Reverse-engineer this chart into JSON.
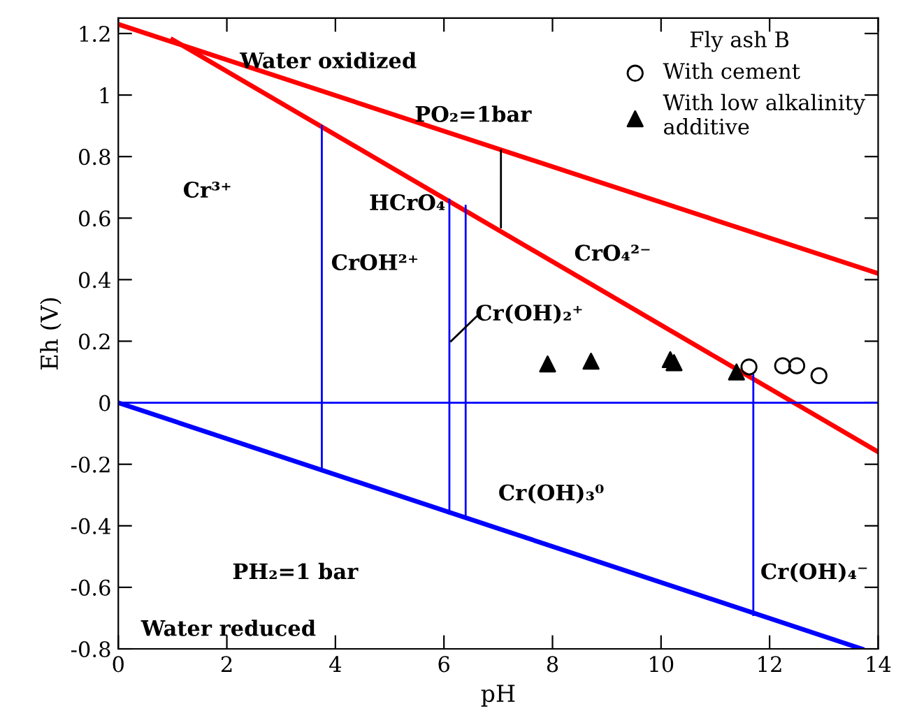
{
  "chart_data": {
    "type": "line",
    "xlabel": "pH",
    "ylabel": "Eh (V)",
    "legend_title": "Fly ash B",
    "legend": "top right",
    "grid": false,
    "xlim": [
      0,
      14
    ],
    "ylim": [
      -0.8,
      1.25
    ],
    "xticks": [
      0,
      2,
      4,
      6,
      8,
      10,
      12,
      14
    ],
    "yticks": [
      {
        "value": -0.8,
        "label": "-0.8"
      },
      {
        "value": -0.6,
        "label": "-0.6"
      },
      {
        "value": -0.4,
        "label": "-0.4"
      },
      {
        "value": -0.2,
        "label": "-0.2"
      },
      0,
      0.2,
      0.4,
      0.6,
      0.8,
      1,
      1.2
    ],
    "series": [
      {
        "color": "#ff0000",
        "x": [
          0,
          14
        ],
        "values": [
          1.23,
          0.42
        ]
      },
      {
        "color": "#ff0000",
        "x": [
          1.0,
          14
        ],
        "values": [
          1.18,
          -0.16
        ]
      },
      {
        "color": "#0000ff",
        "x": [
          0,
          13.7
        ],
        "values": [
          0,
          -0.8
        ]
      },
      {
        "color": "#0000ff",
        "x": [
          0,
          14
        ],
        "values": [
          0,
          0
        ]
      },
      {
        "color": "#0000ff",
        "x": [
          3.75,
          3.75
        ],
        "values": [
          -0.22,
          0.9
        ]
      },
      {
        "color": "#0000ff",
        "x": [
          6.1,
          6.1
        ],
        "values": [
          -0.36,
          0.66
        ]
      },
      {
        "color": "#0000ff",
        "x": [
          6.4,
          6.4
        ],
        "values": [
          -0.37,
          0.64
        ]
      },
      {
        "color": "#0000ff",
        "x": [
          11.7,
          11.7
        ],
        "values": [
          -0.69,
          0.09
        ]
      },
      {
        "color": "#000000",
        "x": [
          7.05,
          7.05
        ],
        "values": [
          0.57,
          0.82
        ]
      },
      {
        "color": "#000000",
        "x": [
          6.13,
          6.6
        ],
        "values": [
          0.2,
          0.28
        ]
      },
      {
        "type": "scatter",
        "name": "With cement",
        "marker": "circle",
        "color": "#000000",
        "x": [
          11.62,
          12.24,
          12.5,
          12.91
        ],
        "values": [
          0.116,
          0.12,
          0.12,
          0.088
        ]
      },
      {
        "type": "scatter",
        "name": "With low alkalinity\nadditive",
        "marker": "triangle",
        "color": "#000000",
        "x": [
          7.91,
          8.71,
          10.17,
          10.24,
          11.39
        ],
        "values": [
          0.126,
          0.135,
          0.14,
          0.13,
          0.1
        ]
      }
    ],
    "annotations": [
      "Water oxidized",
      "PO₂=1bar",
      "Cr³⁺",
      "HCrO₄",
      "CrO₄²⁻",
      "CrOH²⁺",
      "Cr(OH)₂⁺",
      "Cr(OH)₃⁰",
      "Cr(OH)₄⁻",
      "PH₂=1 bar",
      "Water reduced"
    ]
  }
}
